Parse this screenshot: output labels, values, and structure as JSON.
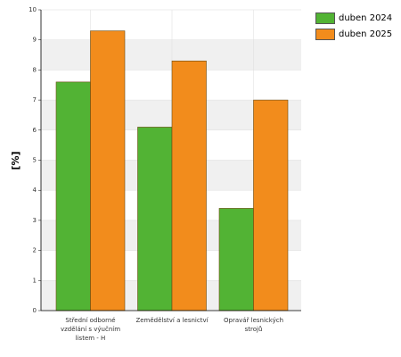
{
  "chart_data": {
    "type": "bar",
    "y_label": "[%]",
    "categories": [
      "Střední odborné vzdělání s výučním listem - H",
      "Zemědělství a lesnictví",
      "Opravář lesnických strojů"
    ],
    "series": [
      {
        "name": "duben 2024",
        "color": "#52b334",
        "values": [
          7.6,
          6.1,
          3.4
        ]
      },
      {
        "name": "duben 2025",
        "color": "#f28c1c",
        "values": [
          9.3,
          8.3,
          7.0
        ]
      }
    ],
    "ylim": [
      0,
      10
    ],
    "yticks": [
      0,
      1,
      2,
      3,
      4,
      5,
      6,
      7,
      8,
      9,
      10
    ],
    "grid": true,
    "legend": "top-right"
  }
}
